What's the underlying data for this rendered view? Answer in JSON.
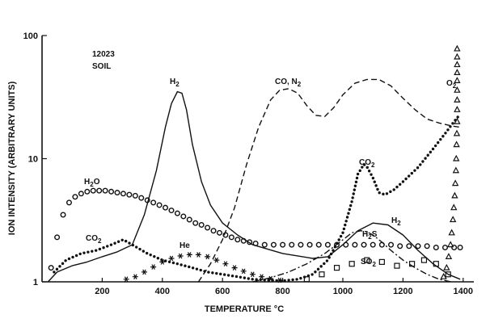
{
  "chart_data": {
    "type": "line",
    "annotations": [
      "12023",
      "SOIL"
    ],
    "xlabel": "TEMPERATURE °C",
    "ylabel": "ION INTENSITY (ARBITRARY UNITS)",
    "x_scale": "linear",
    "y_scale": "log",
    "xlim": [
      0,
      1410
    ],
    "ylim": [
      1,
      100
    ],
    "x_ticks": [
      "200",
      "400",
      "600",
      "800",
      "1000",
      "1200",
      "1400"
    ],
    "y_ticks": [
      "1",
      "10",
      "100"
    ],
    "series": [
      {
        "name": "H2",
        "label_main": "H",
        "label_sub": "2",
        "style": "solid",
        "marker": "",
        "x": [
          20,
          50,
          100,
          150,
          200,
          250,
          300,
          340,
          380,
          410,
          430,
          450,
          465,
          480,
          500,
          530,
          560,
          600,
          650,
          700,
          800,
          900,
          950,
          1000,
          1050,
          1100,
          1150,
          1200,
          1250,
          1300,
          1350,
          1390
        ],
        "y": [
          1.0,
          1.2,
          1.35,
          1.45,
          1.6,
          1.75,
          2.0,
          3.5,
          8,
          18,
          28,
          35,
          34,
          25,
          13,
          6.5,
          4.2,
          3.0,
          2.4,
          2.0,
          1.7,
          1.55,
          1.6,
          2.0,
          2.6,
          3.0,
          2.9,
          2.4,
          1.8,
          1.4,
          1.15,
          1.05
        ]
      },
      {
        "name": "H2O",
        "label_main": "H",
        "label_sub": "2",
        "label_tail": "O",
        "style": "markers",
        "marker": "circle",
        "x": [
          30,
          50,
          70,
          90,
          110,
          130,
          150,
          170,
          190,
          210,
          230,
          250,
          270,
          290,
          310,
          330,
          350,
          370,
          390,
          410,
          430,
          450,
          470,
          490,
          510,
          530,
          550,
          570,
          590,
          610,
          630,
          650,
          670,
          690,
          710,
          740,
          770,
          800,
          830,
          860,
          890,
          920,
          950,
          980,
          1010,
          1040,
          1070,
          1100,
          1130,
          1160,
          1190,
          1220,
          1250,
          1280,
          1310,
          1340,
          1370,
          1390
        ],
        "y": [
          1.3,
          2.3,
          3.5,
          4.4,
          4.9,
          5.2,
          5.4,
          5.5,
          5.5,
          5.5,
          5.4,
          5.3,
          5.2,
          5.1,
          5.0,
          4.8,
          4.6,
          4.4,
          4.2,
          4.0,
          3.8,
          3.6,
          3.4,
          3.2,
          3.0,
          2.9,
          2.75,
          2.6,
          2.5,
          2.4,
          2.3,
          2.2,
          2.15,
          2.1,
          2.05,
          2.0,
          2.0,
          2.0,
          2.0,
          2.0,
          2.0,
          2.0,
          2.0,
          2.0,
          2.0,
          2.0,
          2.0,
          2.0,
          2.0,
          2.0,
          1.95,
          1.95,
          1.95,
          1.95,
          1.9,
          1.9,
          1.9,
          1.9
        ]
      },
      {
        "name": "CO2",
        "label_main": "CO",
        "label_sub": "2",
        "style": "dotted",
        "marker": "",
        "x": [
          40,
          80,
          130,
          180,
          230,
          270,
          300,
          350,
          400,
          450,
          500,
          550,
          600,
          650,
          700,
          750,
          800,
          850,
          900,
          950,
          1000,
          1030,
          1050,
          1070,
          1080,
          1100,
          1120,
          1140,
          1170,
          1200,
          1250,
          1300,
          1340,
          1370,
          1390
        ],
        "y": [
          1.2,
          1.5,
          1.7,
          1.8,
          2.0,
          2.2,
          2.0,
          1.7,
          1.5,
          1.4,
          1.3,
          1.2,
          1.15,
          1.1,
          1.05,
          1.03,
          1.02,
          1.05,
          1.15,
          1.5,
          2.5,
          4.5,
          7.5,
          9.0,
          8.6,
          7.0,
          5.3,
          5.1,
          5.6,
          6.5,
          8.5,
          12,
          16,
          20,
          23
        ]
      },
      {
        "name": "CO, N2",
        "label_main": "CO, N",
        "label_sub": "2",
        "style": "dashed",
        "marker": "",
        "x": [
          520,
          560,
          600,
          640,
          680,
          720,
          760,
          790,
          820,
          850,
          880,
          910,
          940,
          970,
          1000,
          1040,
          1080,
          1120,
          1160,
          1200,
          1240,
          1280,
          1320,
          1360,
          1390
        ],
        "y": [
          1.0,
          1.4,
          2.2,
          4.0,
          9.0,
          18,
          30,
          36,
          37,
          34,
          27,
          22.5,
          22,
          26,
          33,
          41,
          44,
          44,
          39,
          31,
          25,
          21,
          19.5,
          18.5,
          18
        ]
      },
      {
        "name": "He",
        "label_main": "He",
        "label_sub": "",
        "style": "markers",
        "marker": "asterisk",
        "x": [
          280,
          310,
          340,
          370,
          400,
          430,
          460,
          490,
          520,
          550,
          580,
          610,
          640,
          670,
          700,
          730,
          760,
          790
        ],
        "y": [
          1.05,
          1.1,
          1.2,
          1.32,
          1.45,
          1.55,
          1.62,
          1.66,
          1.66,
          1.6,
          1.5,
          1.4,
          1.3,
          1.22,
          1.15,
          1.1,
          1.06,
          1.03
        ]
      },
      {
        "name": "H2S",
        "label_main": "H",
        "label_sub": "2",
        "label_tail": "S",
        "style": "dashdot",
        "marker": "",
        "x": [
          700,
          760,
          820,
          880,
          940,
          990,
          1030,
          1060,
          1080,
          1100,
          1130,
          1160,
          1200,
          1240,
          1280,
          1320,
          1360
        ],
        "y": [
          1.0,
          1.08,
          1.2,
          1.4,
          1.7,
          2.1,
          2.5,
          2.6,
          2.55,
          2.4,
          2.1,
          1.8,
          1.5,
          1.3,
          1.15,
          1.05,
          1.0
        ]
      },
      {
        "name": "SO2",
        "label_main": "SO",
        "label_sub": "2",
        "style": "markers",
        "marker": "square",
        "x": [
          880,
          930,
          980,
          1030,
          1080,
          1130,
          1180,
          1230,
          1270,
          1310,
          1350
        ],
        "y": [
          1.05,
          1.15,
          1.3,
          1.4,
          1.5,
          1.45,
          1.35,
          1.4,
          1.5,
          1.4,
          1.15
        ]
      },
      {
        "name": "O2",
        "label_main": "O",
        "label_sub": "2",
        "style": "markers",
        "marker": "triangle",
        "x": [
          1335,
          1345,
          1352,
          1358,
          1362,
          1366,
          1369,
          1372,
          1374,
          1376,
          1377,
          1378,
          1379,
          1380,
          1380,
          1380,
          1380,
          1380,
          1380,
          1380,
          1380,
          1380
        ],
        "y": [
          1.1,
          1.3,
          1.6,
          2.0,
          2.5,
          3.2,
          4.0,
          5.0,
          6.3,
          8.0,
          10,
          13,
          16,
          20,
          25,
          30,
          36,
          43,
          50,
          58,
          67,
          78
        ]
      }
    ]
  }
}
